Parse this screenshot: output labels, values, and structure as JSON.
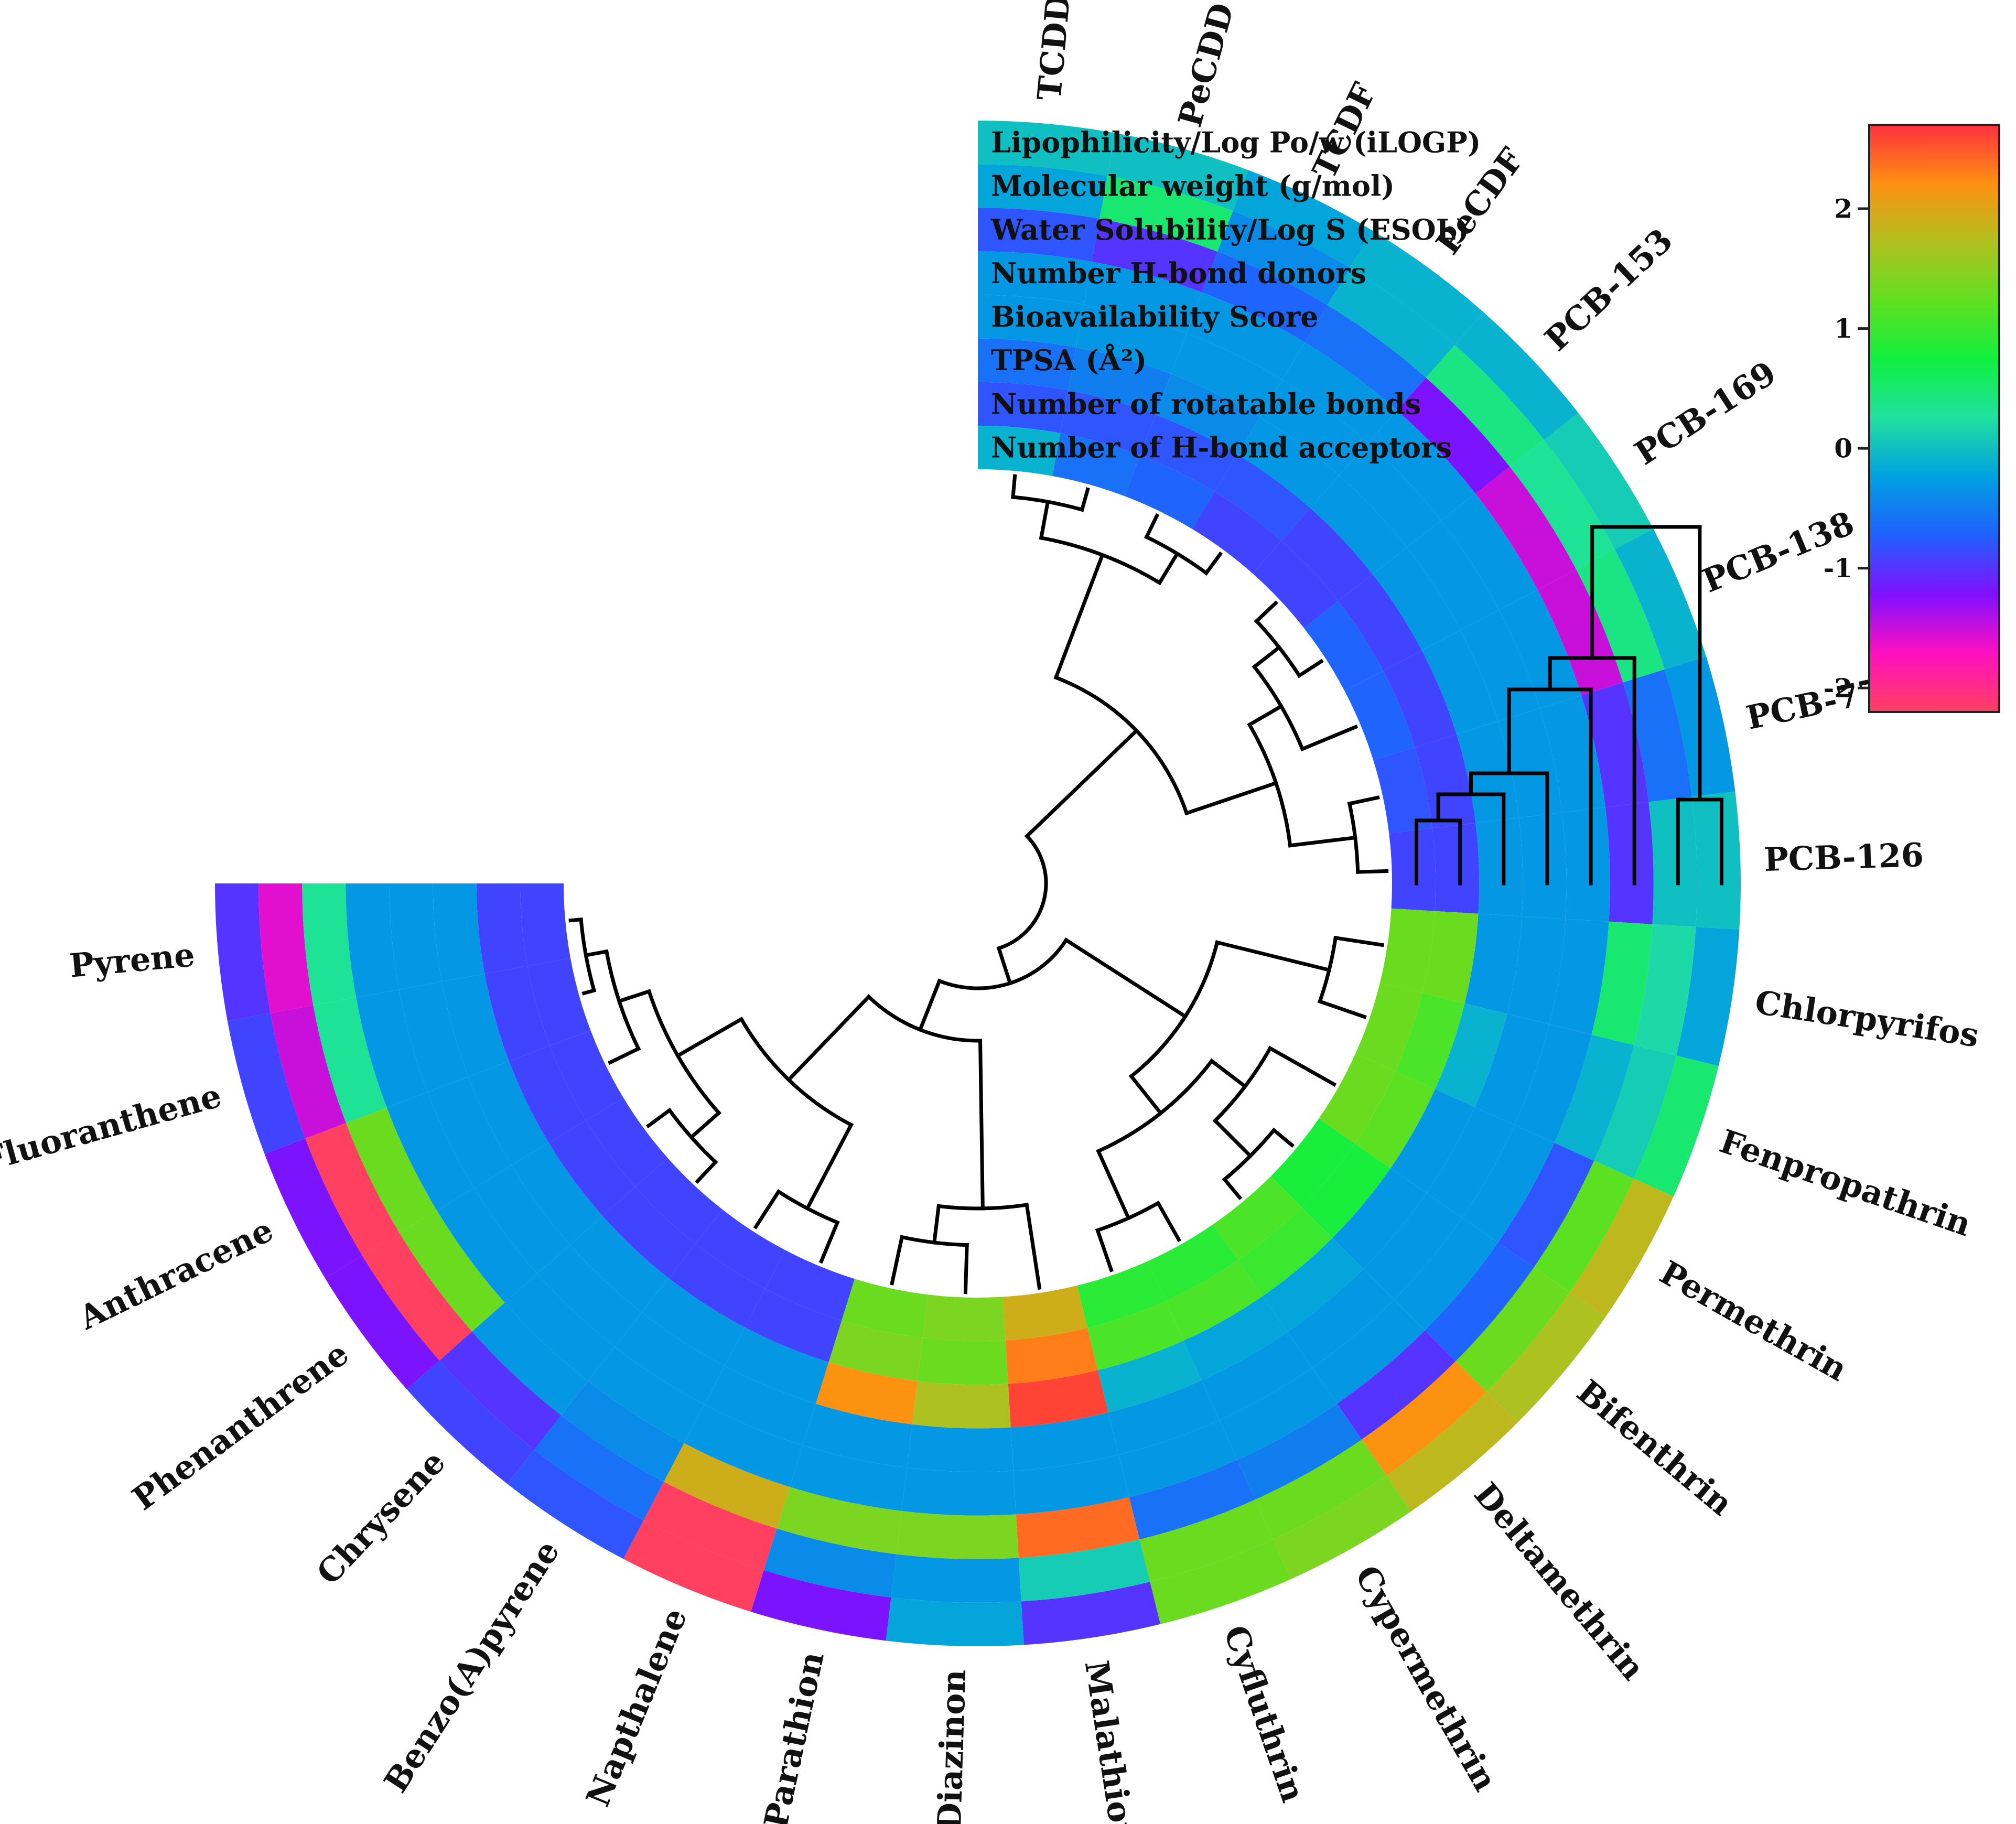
{
  "chart_data": {
    "type": "heatmap",
    "layout": "circular-heatmap-with-dendrogram",
    "title": "",
    "variables": [
      "Lipophilicity/Log Po/w (iLOGP)",
      "Molecular weight (g/mol)",
      "Water Solubility/Log S (ESOL)",
      "Number H-bond donors",
      "Bioavailability Score",
      "TPSA (Å²)",
      "Number of rotatable bonds",
      "Number of H-bond acceptors"
    ],
    "compounds": [
      "TCDD",
      "PeCDD",
      "TCDF",
      "PeCDF",
      "PCB-153",
      "PCB-169",
      "PCB-138",
      "PCB-77",
      "PCB-126",
      "Chlorpyrifos",
      "Fenpropathrin",
      "Permethrin",
      "Bifenthrin",
      "Deltamethrin",
      "Cypermethrin",
      "Cyfluthrin",
      "Malathion",
      "Diazinon",
      "Parathion",
      "Napthalene",
      "Benzo(A)pyrene",
      "Chrysene",
      "Phenanthrene",
      "Anthracene",
      "Fluoranthene",
      "Pyrene"
    ],
    "values": [
      [
        0.0,
        -0.2,
        -0.8,
        -0.3,
        -0.3,
        -0.6,
        -0.8,
        -0.1
      ],
      [
        0.0,
        0.5,
        -1.0,
        -0.3,
        -0.3,
        -0.5,
        -0.8,
        -0.6
      ],
      [
        -0.2,
        -0.4,
        -0.7,
        -0.3,
        -0.3,
        -0.4,
        -0.8,
        -0.7
      ],
      [
        -0.1,
        -0.1,
        -0.6,
        -0.3,
        -0.3,
        -0.3,
        -0.8,
        -0.9
      ],
      [
        -0.1,
        0.4,
        -1.2,
        -0.3,
        -0.3,
        -0.3,
        -0.9,
        -0.9
      ],
      [
        0.1,
        0.3,
        -1.5,
        -0.3,
        -0.3,
        -0.3,
        -0.9,
        -0.7
      ],
      [
        -0.1,
        0.4,
        -1.5,
        -0.3,
        -0.3,
        -0.3,
        -0.9,
        -0.7
      ],
      [
        -0.3,
        -0.6,
        -1.0,
        -0.3,
        -0.3,
        -0.3,
        -0.9,
        -0.8
      ],
      [
        0.0,
        0.0,
        -1.0,
        -0.3,
        -0.3,
        -0.3,
        -0.9,
        -0.9
      ],
      [
        -0.2,
        0.2,
        0.5,
        -0.3,
        -0.3,
        -0.3,
        1.3,
        1.3
      ],
      [
        0.5,
        0.1,
        -0.1,
        -0.3,
        -0.3,
        -0.1,
        1.1,
        1.3
      ],
      [
        1.8,
        1.2,
        -0.8,
        -0.3,
        -0.3,
        -0.3,
        1.2,
        1.3
      ],
      [
        1.7,
        1.3,
        -0.7,
        -0.3,
        -0.3,
        -0.3,
        0.8,
        0.8
      ],
      [
        1.8,
        2.2,
        -1.0,
        -0.3,
        -0.3,
        -0.2,
        1.0,
        1.1
      ],
      [
        1.4,
        1.3,
        -0.5,
        -0.3,
        -0.3,
        -0.2,
        1.1,
        0.9
      ],
      [
        1.3,
        1.3,
        -0.6,
        -0.3,
        -0.3,
        -0.1,
        1.1,
        0.9
      ],
      [
        -1.0,
        0.1,
        2.4,
        -0.3,
        -0.3,
        2.6,
        2.3,
        1.9
      ],
      [
        -0.2,
        -0.3,
        1.4,
        -0.3,
        -0.3,
        1.7,
        1.3,
        1.4
      ],
      [
        -1.2,
        -0.4,
        1.4,
        -0.3,
        -0.3,
        2.2,
        1.4,
        1.3
      ],
      [
        -2.2,
        -2.5,
        1.9,
        -0.3,
        -0.3,
        -0.3,
        -0.9,
        -0.9
      ],
      [
        -0.8,
        -0.6,
        -0.4,
        -0.3,
        -0.3,
        -0.3,
        -0.9,
        -0.9
      ],
      [
        -0.9,
        -1.0,
        -0.3,
        -0.3,
        -0.3,
        -0.3,
        -0.9,
        -0.9
      ],
      [
        -1.2,
        -2.3,
        1.3,
        -0.3,
        -0.3,
        -0.3,
        -0.9,
        -0.9
      ],
      [
        -1.2,
        -2.3,
        1.3,
        -0.3,
        -0.3,
        -0.3,
        -0.9,
        -0.9
      ],
      [
        -0.9,
        -1.5,
        0.3,
        -0.3,
        -0.3,
        -0.3,
        -0.9,
        -0.9
      ],
      [
        -1.0,
        -1.6,
        0.3,
        -0.3,
        -0.3,
        -0.3,
        -0.9,
        -0.9
      ]
    ],
    "colorbar": {
      "min": -2.2,
      "max": 2.7,
      "ticks": [
        {
          "value": 2,
          "label": "2"
        },
        {
          "value": 1,
          "label": "1"
        },
        {
          "value": 0,
          "label": "0"
        },
        {
          "value": -1,
          "label": "-1"
        },
        {
          "value": -2,
          "label": "-2"
        }
      ],
      "colors": [
        "#ff4060",
        "#ff10c0",
        "#8010ff",
        "#2060ff",
        "#00a0e0",
        "#20e0a0",
        "#10f040",
        "#60e020",
        "#b0c020",
        "#ff9010",
        "#ff3040"
      ]
    },
    "legend_position": "right"
  }
}
